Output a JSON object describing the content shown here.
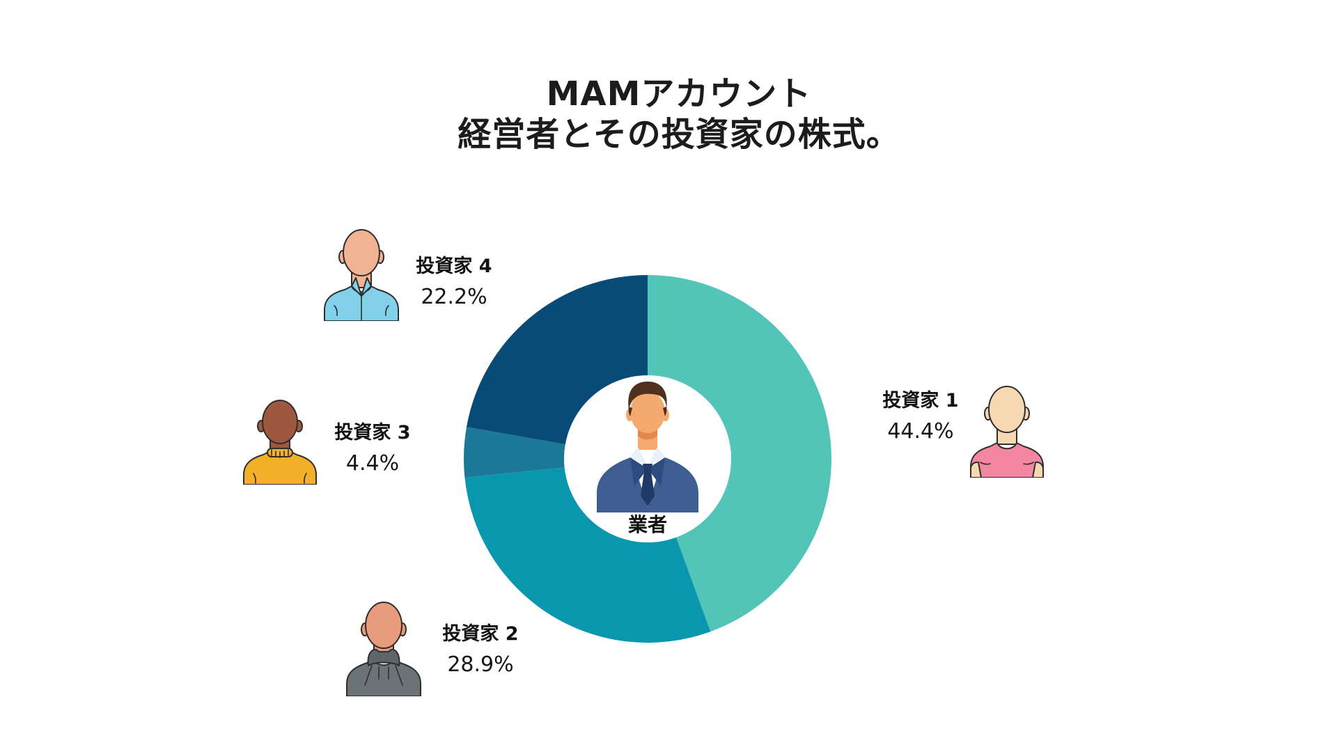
{
  "title": {
    "line1": "MAMアカウント",
    "line2": "経営者とその投資家の株式。"
  },
  "chart_data": {
    "type": "pie",
    "subtype": "donut",
    "title": "MAMアカウント 経営者とその投資家の株式。",
    "direction": "clockwise",
    "start_angle_deg": 0,
    "categories": [
      "投資家 1",
      "投資家 2",
      "投資家 3",
      "投資家 4"
    ],
    "values": [
      44.4,
      28.9,
      4.4,
      22.2
    ],
    "unit": "%",
    "colors": [
      "#53C5B8",
      "#0997AE",
      "#1B7897",
      "#084A78"
    ],
    "inner_radius_ratio": 0.455,
    "center_label": "業者",
    "legend": "none"
  },
  "center": {
    "label": "業者"
  },
  "callouts": [
    {
      "name": "投資家 1",
      "pct": "44.4%",
      "avatar": "bald-man-pink-tshirt"
    },
    {
      "name": "投資家 2",
      "pct": "28.9%",
      "avatar": "bald-man-gray-hoodie"
    },
    {
      "name": "投資家 3",
      "pct": "4.4%",
      "avatar": "bald-man-yellow-sweater"
    },
    {
      "name": "投資家 4",
      "pct": "22.2%",
      "avatar": "bald-man-blue-shirt"
    }
  ],
  "avatars": {
    "a1": {
      "skin": "#F6D8B2",
      "shirt": "#F2879F"
    },
    "a2": {
      "skin": "#E99C7D",
      "shirt": "#6B7376",
      "shirt_dark": "#5E6669"
    },
    "a3": {
      "skin": "#9E5840",
      "shirt": "#F2B028"
    },
    "a4": {
      "skin": "#F2B394",
      "shirt": "#82D0EA"
    }
  },
  "manager": {
    "skin": "#F4A96F",
    "skin_shadow": "#E2884E",
    "hair": "#4F311E",
    "suit": "#3E5E92",
    "lapel": "#2E4B7E",
    "shirt": "#FFFFFF",
    "collar": "#E8F2FA",
    "tie": "#1F3A67"
  }
}
